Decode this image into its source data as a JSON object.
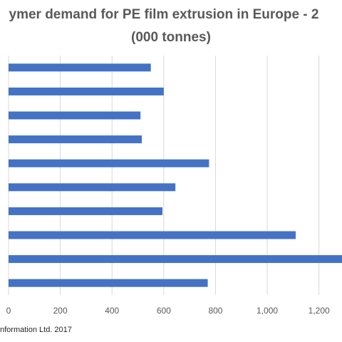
{
  "chart_data": {
    "type": "bar",
    "orientation": "horizontal",
    "title_line1": "ymer demand for PE film extrusion in Europe - 2",
    "title_line2": "(000 tonnes)",
    "categories": [
      "",
      "",
      "",
      "",
      "",
      "",
      "",
      "",
      "",
      ""
    ],
    "values": [
      550,
      600,
      510,
      515,
      775,
      645,
      595,
      1110,
      1300,
      770
    ],
    "xlim": [
      0,
      1300
    ],
    "xticks": [
      0,
      200,
      400,
      600,
      800,
      1000,
      1200
    ],
    "xtick_labels": [
      "0",
      "200",
      "400",
      "600",
      "800",
      "1,000",
      "1,200"
    ],
    "grid": true,
    "bar_color": "#4472c4",
    "grid_color": "#d9d9d9"
  },
  "footer": {
    "source": "nformation Ltd. 2017"
  }
}
